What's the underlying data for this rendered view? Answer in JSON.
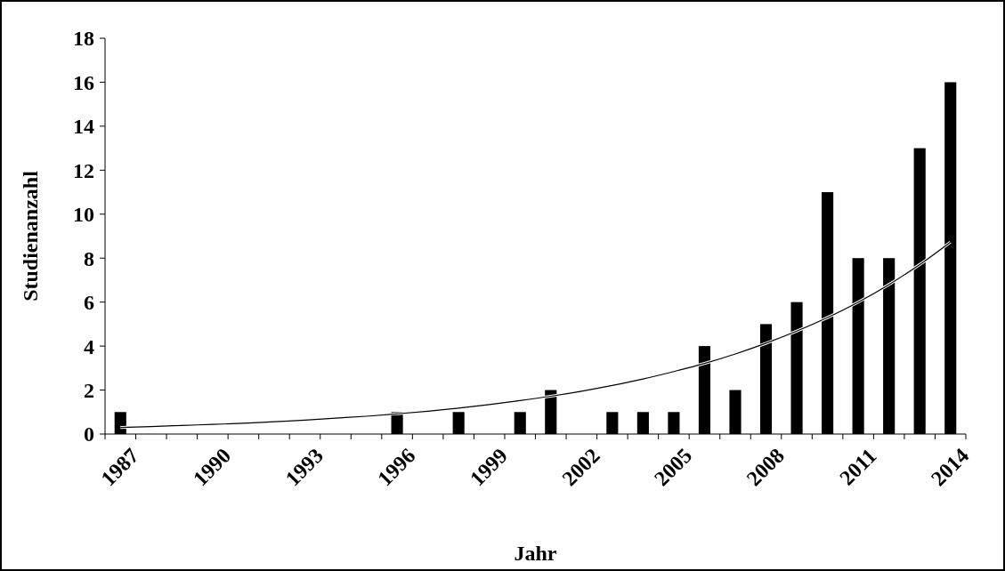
{
  "chart_data": {
    "type": "bar",
    "xlabel": "Jahr",
    "ylabel": "Studienanzahl",
    "categories": [
      "1987",
      null,
      null,
      "1990",
      null,
      null,
      "1993",
      null,
      null,
      "1996",
      null,
      null,
      "1999",
      null,
      null,
      "2002",
      null,
      null,
      "2005",
      null,
      null,
      "2008",
      null,
      null,
      "2011",
      null,
      null,
      "2014"
    ],
    "series": [
      {
        "color": "#000000",
        "values": [
          1,
          0,
          0,
          0,
          0,
          0,
          0,
          0,
          0,
          1,
          0,
          1,
          0,
          1,
          2,
          0,
          1,
          1,
          1,
          4,
          2,
          5,
          6,
          11,
          8,
          8,
          13,
          16
        ]
      },
      {
        "type": "line",
        "color": "#000000",
        "values": [
          0.3,
          0.34,
          0.39,
          0.44,
          0.49,
          0.56,
          0.63,
          0.72,
          0.81,
          0.92,
          1.04,
          1.18,
          1.34,
          1.52,
          1.72,
          1.95,
          2.21,
          2.5,
          2.84,
          3.21,
          3.64,
          4.13,
          4.68,
          5.3,
          6.0,
          6.8,
          7.71,
          8.73
        ]
      }
    ],
    "ylim": [
      0,
      18
    ],
    "yticks": [
      0,
      2,
      4,
      6,
      8,
      10,
      12,
      14,
      16,
      18
    ],
    "grid": false,
    "marker": "none",
    "line_style": "solid"
  }
}
